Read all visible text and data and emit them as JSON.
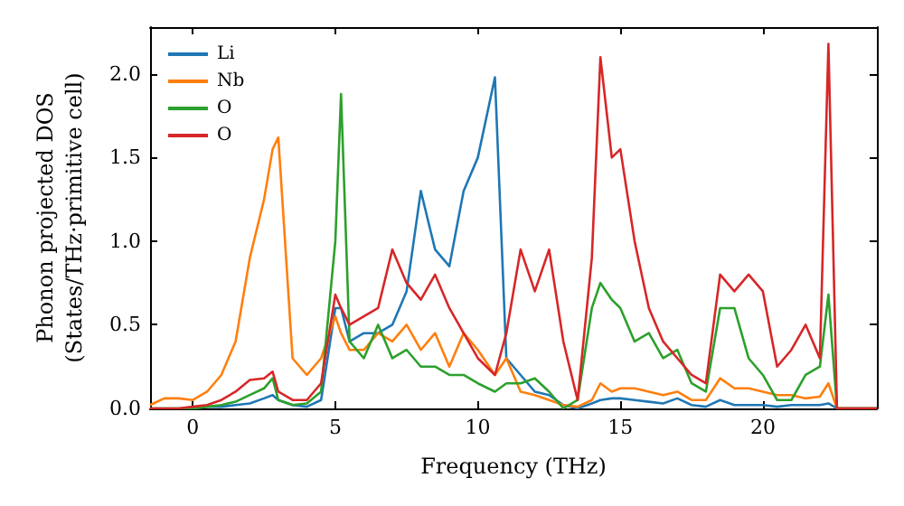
{
  "chart_data": {
    "type": "line",
    "xlabel": "Frequency (THz)",
    "ylabel": "Phonon projected DOS\n(States/THz·primitive cell)",
    "x": [
      -1.5,
      -1,
      -0.5,
      0,
      0.5,
      1,
      1.5,
      2,
      2.5,
      2.8,
      3,
      3.5,
      4,
      4.5,
      5,
      5.2,
      5.5,
      6,
      6.5,
      7,
      7.5,
      8,
      8.5,
      9,
      9.5,
      10,
      10.6,
      11,
      11.5,
      12,
      12.5,
      13,
      13.5,
      14,
      14.3,
      14.7,
      15,
      15.5,
      16,
      16.5,
      17,
      17.5,
      18,
      18.5,
      19,
      19.5,
      20,
      20.5,
      21,
      21.5,
      22,
      22.3,
      22.6,
      23,
      24
    ],
    "series": [
      {
        "name": "Li",
        "color": "#1f77b4",
        "values": [
          null,
          null,
          null,
          0,
          0.01,
          0.01,
          0.02,
          0.03,
          0.06,
          0.08,
          0.05,
          0.02,
          0.01,
          0.05,
          0.6,
          0.6,
          0.4,
          0.45,
          0.45,
          0.5,
          0.7,
          1.3,
          0.95,
          0.85,
          1.3,
          1.5,
          1.98,
          0.3,
          0.2,
          0.1,
          0.08,
          0.02,
          0,
          0.03,
          0.05,
          0.06,
          0.06,
          0.05,
          0.04,
          0.03,
          0.06,
          0.02,
          0.01,
          0.05,
          0.02,
          0.02,
          0.02,
          0.01,
          0.02,
          0.02,
          0.02,
          0.03,
          0,
          0,
          0
        ]
      },
      {
        "name": "Nb",
        "color": "#ff7f0e",
        "values": [
          0.02,
          0.06,
          0.06,
          0.05,
          0.1,
          0.2,
          0.4,
          0.9,
          1.25,
          1.55,
          1.62,
          0.3,
          0.2,
          0.3,
          0.55,
          0.45,
          0.35,
          0.35,
          0.45,
          0.4,
          0.5,
          0.35,
          0.45,
          0.25,
          0.45,
          0.35,
          0.2,
          0.3,
          0.1,
          0.08,
          0.05,
          0.02,
          0.01,
          0.05,
          0.15,
          0.1,
          0.12,
          0.12,
          0.1,
          0.08,
          0.1,
          0.05,
          0.05,
          0.18,
          0.12,
          0.12,
          0.1,
          0.08,
          0.08,
          0.06,
          0.07,
          0.15,
          0,
          0,
          0
        ]
      },
      {
        "name": "O",
        "color": "#2ca02c",
        "values": [
          0,
          0,
          0,
          0,
          0.01,
          0.02,
          0.04,
          0.08,
          0.12,
          0.18,
          0.05,
          0.02,
          0.03,
          0.1,
          1.0,
          1.88,
          0.4,
          0.3,
          0.5,
          0.3,
          0.35,
          0.25,
          0.25,
          0.2,
          0.2,
          0.15,
          0.1,
          0.15,
          0.15,
          0.18,
          0.1,
          0,
          0.05,
          0.6,
          0.75,
          0.65,
          0.6,
          0.4,
          0.45,
          0.3,
          0.35,
          0.15,
          0.1,
          0.6,
          0.6,
          0.3,
          0.2,
          0.05,
          0.05,
          0.2,
          0.25,
          0.68,
          0,
          0,
          0
        ]
      },
      {
        "name": "O",
        "color": "#d62728",
        "values": [
          0,
          0,
          0,
          0.01,
          0.02,
          0.05,
          0.1,
          0.17,
          0.18,
          0.22,
          0.1,
          0.05,
          0.05,
          0.15,
          0.68,
          0.6,
          0.5,
          0.55,
          0.6,
          0.95,
          0.75,
          0.65,
          0.8,
          0.6,
          0.45,
          0.3,
          0.2,
          0.45,
          0.95,
          0.7,
          0.95,
          0.4,
          0.05,
          0.9,
          2.1,
          1.5,
          1.55,
          1.0,
          0.6,
          0.4,
          0.3,
          0.2,
          0.15,
          0.8,
          0.7,
          0.8,
          0.7,
          0.25,
          0.35,
          0.5,
          0.3,
          2.18,
          0,
          0,
          0
        ]
      }
    ],
    "xlim": [
      -1.5,
      24
    ],
    "xticks": [
      0,
      5,
      10,
      15,
      20
    ],
    "ylim": [
      0,
      2.28
    ],
    "yticks": [
      {
        "value": 0,
        "label": "0.0"
      },
      {
        "value": 0.5,
        "label": "0.5"
      },
      {
        "value": 1,
        "label": "1.0"
      },
      {
        "value": 1.5,
        "label": "1.5"
      },
      {
        "value": 2,
        "label": "2.0"
      }
    ],
    "grid": false,
    "legend": "top left",
    "marker": "none",
    "line_style": "solid"
  }
}
